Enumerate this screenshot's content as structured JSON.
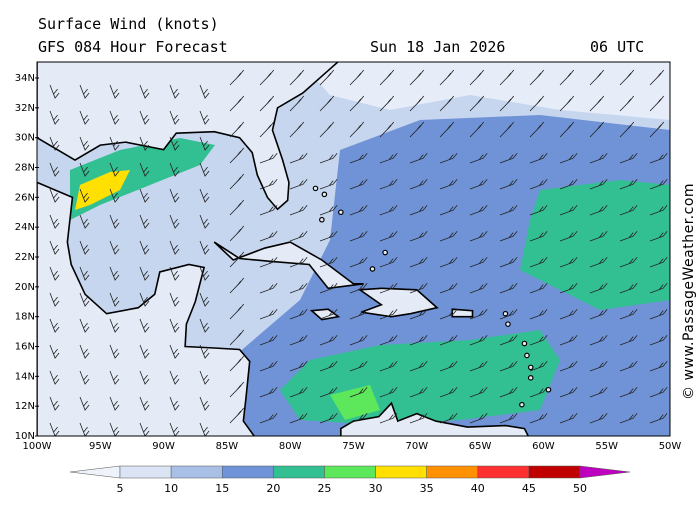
{
  "header": {
    "title": "Surface Wind (knots)",
    "subtitle": "GFS 084 Hour Forecast",
    "date": "Sun 18 Jan 2026",
    "time": "06 UTC"
  },
  "map": {
    "latitude_labels": [
      "34N",
      "32N",
      "30N",
      "28N",
      "26N",
      "24N",
      "22N",
      "20N",
      "18N",
      "16N",
      "14N",
      "12N",
      "10N"
    ],
    "longitude_labels": [
      "100W",
      "95W",
      "90W",
      "85W",
      "80W",
      "75W",
      "70W",
      "65W",
      "60W",
      "55W",
      "50W"
    ]
  },
  "legend": {
    "labels": [
      5,
      10,
      15,
      20,
      25,
      30,
      35,
      40,
      45,
      50
    ],
    "colors": [
      "#eef2fb",
      "#dbe4f5",
      "#a9c0e6",
      "#6f93d6",
      "#32c093",
      "#5ce85a",
      "#ffe000",
      "#ff9000",
      "#ff3030",
      "#c00000",
      "#c000c0"
    ]
  },
  "watermark": "© www.PassageWeather.com"
}
